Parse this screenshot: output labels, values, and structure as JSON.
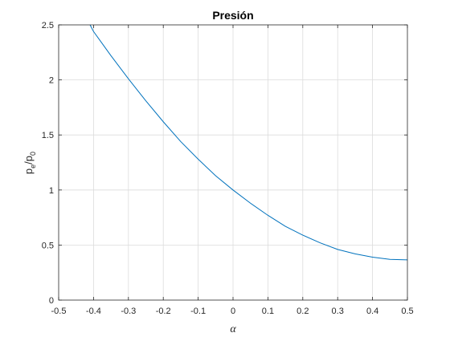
{
  "chart_data": {
    "type": "line",
    "title": "Presión",
    "xlabel": "α",
    "ylabel": {
      "base": "p",
      "sub": "e",
      "sep": "/",
      "base2": "p",
      "sub2": "0"
    },
    "xlim": [
      -0.5,
      0.5
    ],
    "ylim": [
      0,
      2.5
    ],
    "xticks": [
      -0.5,
      -0.4,
      -0.3,
      -0.2,
      -0.1,
      0,
      0.1,
      0.2,
      0.3,
      0.4,
      0.5
    ],
    "xtick_labels": [
      "-0.5",
      "-0.4",
      "-0.3",
      "-0.2",
      "-0.1",
      "0",
      "0.1",
      "0.2",
      "0.3",
      "0.4",
      "0.5"
    ],
    "yticks": [
      0,
      0.5,
      1,
      1.5,
      2,
      2.5
    ],
    "ytick_labels": [
      "0",
      "0.5",
      "1",
      "1.5",
      "2",
      "2.5"
    ],
    "grid": true,
    "series": [
      {
        "color": "#0072BD",
        "x": [
          -0.41,
          -0.4,
          -0.35,
          -0.3,
          -0.25,
          -0.2,
          -0.15,
          -0.1,
          -0.05,
          0,
          0.05,
          0.1,
          0.15,
          0.2,
          0.25,
          0.3,
          0.35,
          0.4,
          0.45,
          0.5
        ],
        "y": [
          2.5,
          2.44,
          2.22,
          2.01,
          1.81,
          1.62,
          1.44,
          1.28,
          1.13,
          1.0,
          0.88,
          0.77,
          0.67,
          0.59,
          0.52,
          0.46,
          0.42,
          0.39,
          0.37,
          0.365
        ]
      }
    ]
  }
}
